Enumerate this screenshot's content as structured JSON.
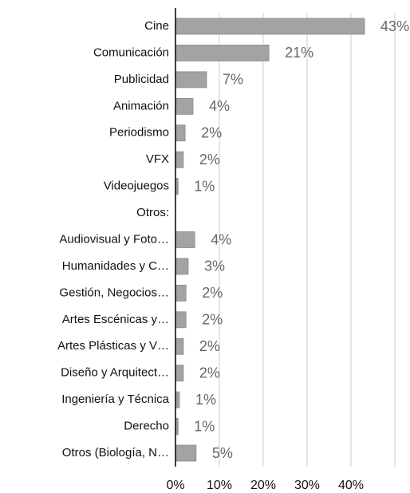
{
  "chart_data": {
    "type": "hbar",
    "categories": [
      "Cine",
      "Comunicación",
      "Publicidad",
      "Animación",
      "Periodismo",
      "VFX",
      "Videojuegos",
      "Otros:",
      "Audiovisual y Foto…",
      "Humanidades y C…",
      "Gestión, Negocios…",
      "Artes Escénicas y…",
      "Artes Plásticas y V…",
      "Diseño y Arquitect…",
      "Ingeniería y Técnica",
      "Derecho",
      "Otros (Biología, N…"
    ],
    "values": [
      43.1,
      21.3,
      7.1,
      4.0,
      2.2,
      1.8,
      0.6,
      null,
      4.4,
      2.9,
      2.4,
      2.4,
      1.8,
      1.8,
      0.9,
      0.6,
      4.7
    ],
    "value_labels": [
      "43%",
      "21%",
      "7%",
      "4%",
      "2%",
      "2%",
      "1%",
      null,
      "4%",
      "3%",
      "2%",
      "2%",
      "2%",
      "2%",
      "1%",
      "1%",
      "5%"
    ],
    "color": "#a3a3a3",
    "xlim": [
      0,
      50
    ],
    "xticks": [
      {
        "value": 0,
        "label": "0%"
      },
      {
        "value": 10,
        "label": "10%"
      },
      {
        "value": 20,
        "label": "20%"
      },
      {
        "value": 30,
        "label": "30%"
      },
      {
        "value": 40,
        "label": "40%"
      }
    ],
    "grid": true
  }
}
